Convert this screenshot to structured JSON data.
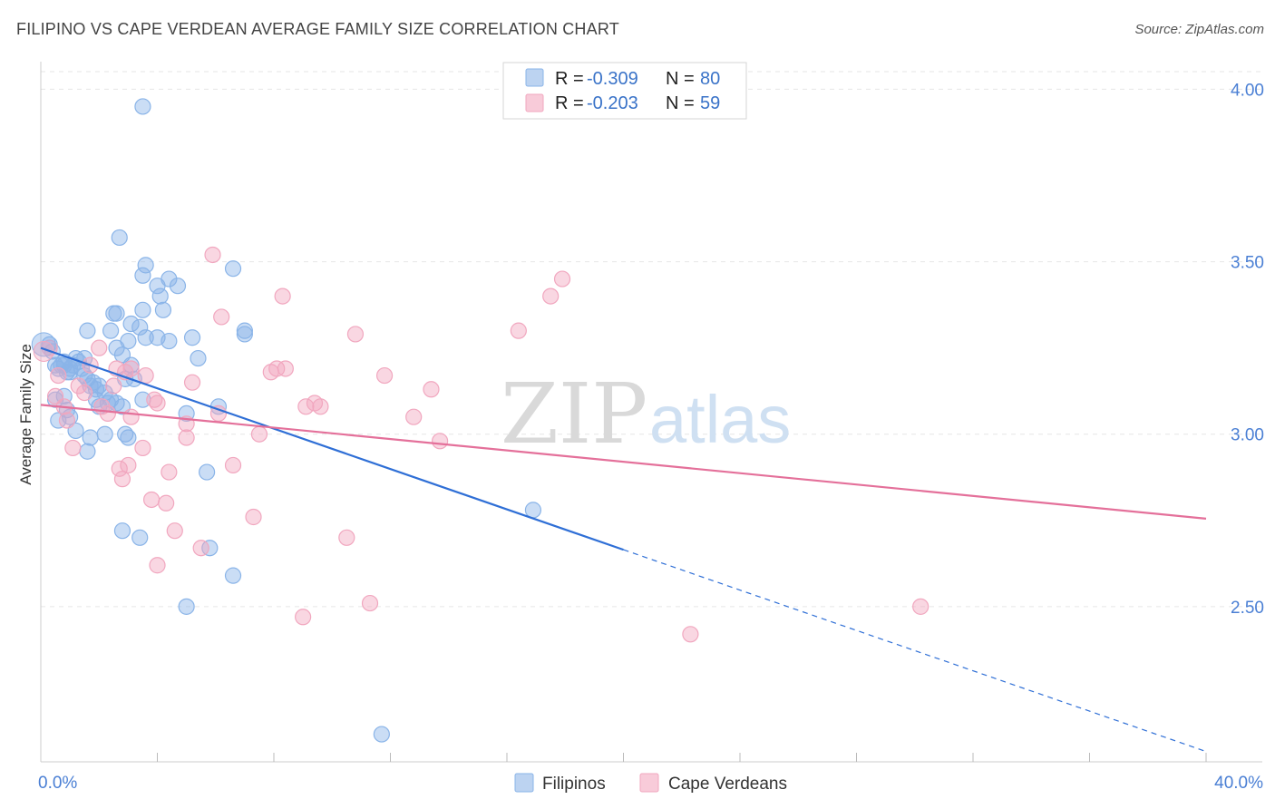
{
  "title": "FILIPINO VS CAPE VERDEAN AVERAGE FAMILY SIZE CORRELATION CHART",
  "source": "Source: ZipAtlas.com",
  "watermark": {
    "part1": "ZIP",
    "part2": "atlas"
  },
  "chart_data": {
    "type": "scatter",
    "title": "FILIPINO VS CAPE VERDEAN AVERAGE FAMILY SIZE CORRELATION CHART",
    "xlabel": "",
    "ylabel": "Average Family Size",
    "xlim": [
      0,
      40
    ],
    "ylim": [
      2.05,
      4.08
    ],
    "x_tick_labels": [
      "0.0%",
      "40.0%"
    ],
    "y_ticks": [
      2.5,
      3.0,
      3.5,
      4.0
    ],
    "y_tick_labels": [
      "2.50",
      "3.00",
      "3.50",
      "4.00"
    ],
    "grid": true,
    "legend": {
      "position": "top-center",
      "rows": [
        {
          "r_label": "R = ",
          "r_value": "-0.309",
          "n_label": "N = ",
          "n_value": "80"
        },
        {
          "r_label": "R = ",
          "r_value": "-0.203",
          "n_label": "N = ",
          "n_value": "59"
        }
      ]
    },
    "series": [
      {
        "name": "Filipinos",
        "color": "#8ab4e8",
        "line_color": "#2f6fd6",
        "trend": {
          "x0": 0,
          "y0": 3.25,
          "x1": 20,
          "y1": 2.665,
          "dash_x1": 40,
          "dash_y1": 2.08
        },
        "points": [
          [
            0.3,
            3.26
          ],
          [
            0.4,
            3.24
          ],
          [
            0.5,
            3.2
          ],
          [
            0.6,
            3.19
          ],
          [
            0.7,
            3.2
          ],
          [
            0.8,
            3.21
          ],
          [
            0.9,
            3.18
          ],
          [
            1.0,
            3.19
          ],
          [
            1.1,
            3.2
          ],
          [
            1.2,
            3.22
          ],
          [
            1.3,
            3.21
          ],
          [
            1.4,
            3.19
          ],
          [
            1.5,
            3.17
          ],
          [
            1.6,
            3.16
          ],
          [
            1.7,
            3.14
          ],
          [
            1.8,
            3.15
          ],
          [
            1.9,
            3.13
          ],
          [
            2.0,
            3.14
          ],
          [
            2.2,
            3.12
          ],
          [
            2.4,
            3.1
          ],
          [
            2.6,
            3.09
          ],
          [
            2.8,
            3.08
          ],
          [
            0.5,
            3.1
          ],
          [
            0.8,
            3.11
          ],
          [
            0.9,
            3.07
          ],
          [
            1.0,
            3.05
          ],
          [
            0.6,
            3.04
          ],
          [
            1.2,
            3.01
          ],
          [
            1.7,
            2.99
          ],
          [
            2.2,
            3.0
          ],
          [
            2.9,
            3.0
          ],
          [
            3.0,
            2.99
          ],
          [
            1.6,
            3.3
          ],
          [
            2.4,
            3.3
          ],
          [
            3.1,
            3.32
          ],
          [
            3.5,
            3.36
          ],
          [
            3.4,
            3.31
          ],
          [
            4.2,
            3.36
          ],
          [
            2.5,
            3.35
          ],
          [
            2.6,
            3.35
          ],
          [
            3.0,
            3.27
          ],
          [
            3.6,
            3.28
          ],
          [
            4.0,
            3.28
          ],
          [
            4.4,
            3.27
          ],
          [
            5.2,
            3.28
          ],
          [
            7.0,
            3.3
          ],
          [
            7.0,
            3.29
          ],
          [
            2.6,
            3.25
          ],
          [
            2.8,
            3.23
          ],
          [
            3.1,
            3.2
          ],
          [
            3.2,
            3.16
          ],
          [
            2.9,
            3.16
          ],
          [
            5.4,
            3.22
          ],
          [
            2.7,
            3.57
          ],
          [
            3.5,
            3.46
          ],
          [
            3.6,
            3.49
          ],
          [
            4.0,
            3.43
          ],
          [
            4.1,
            3.4
          ],
          [
            4.4,
            3.45
          ],
          [
            4.7,
            3.43
          ],
          [
            6.6,
            3.48
          ],
          [
            3.5,
            3.95
          ],
          [
            1.6,
            2.95
          ],
          [
            2.8,
            2.72
          ],
          [
            3.4,
            2.7
          ],
          [
            5.0,
            2.5
          ],
          [
            5.7,
            2.89
          ],
          [
            5.8,
            2.67
          ],
          [
            6.6,
            2.59
          ],
          [
            6.1,
            3.08
          ],
          [
            5.0,
            3.06
          ],
          [
            16.9,
            2.78
          ],
          [
            11.7,
            2.13
          ],
          [
            1.9,
            3.1
          ],
          [
            1.0,
            3.18
          ],
          [
            2.0,
            3.08
          ],
          [
            1.5,
            3.22
          ],
          [
            0.8,
            3.2
          ],
          [
            2.3,
            3.09
          ],
          [
            3.5,
            3.1
          ]
        ]
      },
      {
        "name": "Cape Verdeans",
        "color": "#f1a7bf",
        "line_color": "#e4709a",
        "trend": {
          "x0": 0,
          "y0": 3.085,
          "x1": 40,
          "y1": 2.755
        },
        "points": [
          [
            0.3,
            3.25
          ],
          [
            0.5,
            3.11
          ],
          [
            0.6,
            3.17
          ],
          [
            0.8,
            3.08
          ],
          [
            0.9,
            3.04
          ],
          [
            1.1,
            2.96
          ],
          [
            1.3,
            3.14
          ],
          [
            1.5,
            3.12
          ],
          [
            1.7,
            3.2
          ],
          [
            2.0,
            3.25
          ],
          [
            2.1,
            3.08
          ],
          [
            2.3,
            3.06
          ],
          [
            2.5,
            3.14
          ],
          [
            2.6,
            3.19
          ],
          [
            2.9,
            3.18
          ],
          [
            3.1,
            3.19
          ],
          [
            2.7,
            2.9
          ],
          [
            2.8,
            2.87
          ],
          [
            3.0,
            2.91
          ],
          [
            3.1,
            3.05
          ],
          [
            3.5,
            2.96
          ],
          [
            3.6,
            3.17
          ],
          [
            3.9,
            3.1
          ],
          [
            4.0,
            3.09
          ],
          [
            3.8,
            2.81
          ],
          [
            4.0,
            2.62
          ],
          [
            4.3,
            2.8
          ],
          [
            4.4,
            2.89
          ],
          [
            4.6,
            2.72
          ],
          [
            5.0,
            2.99
          ],
          [
            5.0,
            3.03
          ],
          [
            5.2,
            3.15
          ],
          [
            5.5,
            2.67
          ],
          [
            5.9,
            3.52
          ],
          [
            6.2,
            3.34
          ],
          [
            6.1,
            3.06
          ],
          [
            6.6,
            2.91
          ],
          [
            7.5,
            3.0
          ],
          [
            7.3,
            2.76
          ],
          [
            7.9,
            3.18
          ],
          [
            8.1,
            3.19
          ],
          [
            8.4,
            3.19
          ],
          [
            8.3,
            3.4
          ],
          [
            9.1,
            3.08
          ],
          [
            9.4,
            3.09
          ],
          [
            9.6,
            3.08
          ],
          [
            9.0,
            2.47
          ],
          [
            10.5,
            2.7
          ],
          [
            10.8,
            3.29
          ],
          [
            11.3,
            2.51
          ],
          [
            11.8,
            3.17
          ],
          [
            12.8,
            3.05
          ],
          [
            13.4,
            3.13
          ],
          [
            13.7,
            2.98
          ],
          [
            16.4,
            3.3
          ],
          [
            17.5,
            3.4
          ],
          [
            17.9,
            3.45
          ],
          [
            22.3,
            2.42
          ],
          [
            30.2,
            2.5
          ]
        ]
      }
    ]
  },
  "bottom_legend": [
    "Filipinos",
    "Cape Verdeans"
  ]
}
